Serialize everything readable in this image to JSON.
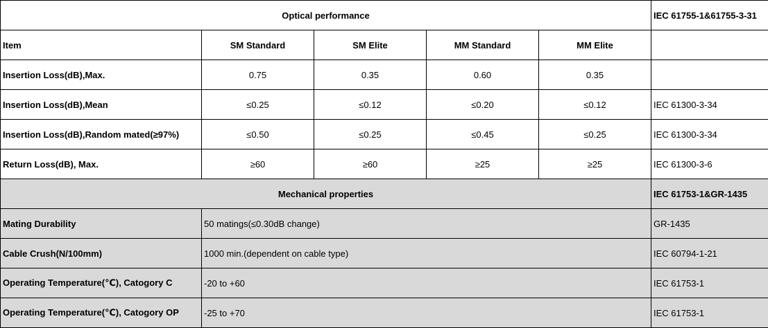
{
  "optical": {
    "title": "Optical performance",
    "standard": "IEC 61755-1&61755-3-31",
    "headers": [
      "Item",
      "SM Standard",
      "SM Elite",
      "MM Standard",
      "MM Elite",
      ""
    ],
    "rows": [
      {
        "item": "Insertion Loss(dB),Max.",
        "values": [
          "0.75",
          "0.35",
          "0.60",
          "0.35"
        ],
        "standard": ""
      },
      {
        "item": "Insertion Loss(dB),Mean",
        "values": [
          "≤0.25",
          "≤0.12",
          "≤0.20",
          "≤0.12"
        ],
        "standard": "IEC 61300-3-34"
      },
      {
        "item": "Insertion Loss(dB),Random mated(≥97%)",
        "values": [
          "≤0.50",
          "≤0.25",
          "≤0.45",
          "≤0.25"
        ],
        "standard": "IEC 61300-3-34"
      },
      {
        "item": "Return Loss(dB), Max.",
        "values": [
          "≥60",
          "≥60",
          "≥25",
          "≥25"
        ],
        "standard": "IEC 61300-3-6"
      }
    ]
  },
  "mechanical": {
    "title": "Mechanical properties",
    "standard": "IEC 61753-1&GR-1435",
    "rows": [
      {
        "item": "Mating Durability",
        "value": "50 matings(≤0.30dB change)",
        "standard": "GR-1435"
      },
      {
        "item": "Cable Crush(N/100mm)",
        "value": "1000 min.(dependent on cable type)",
        "standard": "IEC 60794-1-21"
      },
      {
        "item": "Operating Temperature(℃), Catogory C",
        "value": "-20 to +60",
        "standard": "IEC 61753-1"
      },
      {
        "item": "Operating Temperature(℃), Catogory OP",
        "value": "-25 to +70",
        "standard": "IEC 61753-1"
      }
    ]
  },
  "colors": {
    "section_bg": "#d9d9d9",
    "plain_bg": "#ffffff",
    "border": "#000000"
  }
}
